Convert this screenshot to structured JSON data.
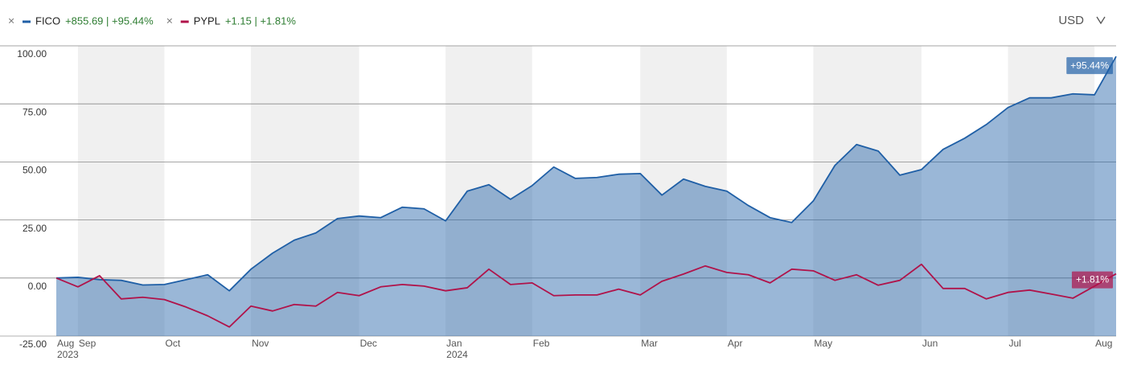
{
  "chart_data": {
    "type": "line",
    "currency": "USD",
    "categories": [
      "Aug 2023",
      "Sep",
      null,
      null,
      null,
      "Oct",
      null,
      null,
      null,
      "Nov",
      null,
      null,
      null,
      null,
      "Dec",
      null,
      null,
      null,
      "Jan 2024",
      null,
      null,
      null,
      "Feb",
      null,
      null,
      null,
      null,
      "Mar",
      null,
      null,
      null,
      "Apr",
      null,
      null,
      null,
      "May",
      null,
      null,
      null,
      null,
      "Jun",
      null,
      null,
      null,
      "Jul",
      null,
      null,
      null,
      "Aug",
      null
    ],
    "series": [
      {
        "name": "FICO",
        "summary": "+855.69 | +95.44%",
        "end_label": "+95.44%",
        "color": "#1f5fa6",
        "area": true,
        "values": [
          0,
          0.3,
          -0.7,
          -1,
          -3,
          -2.8,
          -0.7,
          1.4,
          -5.5,
          3.8,
          10.7,
          16.3,
          19.4,
          25.6,
          26.7,
          26,
          30.5,
          29.8,
          24.6,
          37.4,
          40.2,
          33.9,
          39.8,
          47.8,
          42.9,
          43.3,
          44.7,
          45,
          35.7,
          42.6,
          39.5,
          37.4,
          31.2,
          26,
          23.9,
          33.2,
          48.5,
          57.5,
          54.7,
          44.3,
          46.7,
          55.4,
          60.2,
          66.1,
          73.4,
          77.6,
          77.6,
          79.3,
          78.9,
          95.44
        ]
      },
      {
        "name": "PYPL",
        "summary": "+1.15 | +1.81%",
        "end_label": "+1.81%",
        "color": "#b0134a",
        "area": false,
        "values": [
          0,
          -3.8,
          1,
          -9,
          -8.3,
          -9.3,
          -12.5,
          -16.3,
          -21.1,
          -12.1,
          -14.2,
          -11.4,
          -12.1,
          -6.2,
          -7.6,
          -3.8,
          -2.8,
          -3.5,
          -5.5,
          -4.2,
          3.8,
          -2.8,
          -2.1,
          -7.6,
          -7.3,
          -7.3,
          -4.8,
          -7.3,
          -1.4,
          1.7,
          5.2,
          2.4,
          1.4,
          -2.1,
          3.8,
          3.1,
          -1,
          1.4,
          -3.1,
          -1,
          5.9,
          -4.5,
          -4.5,
          -9,
          -6.2,
          -5.2,
          -6.9,
          -8.7,
          -3.5,
          1.81
        ]
      }
    ],
    "ylim": [
      -25,
      100
    ],
    "yticks": [
      {
        "value": -25,
        "label": "-25.00"
      },
      {
        "value": 0,
        "label": "0.00"
      },
      {
        "value": 25,
        "label": "25.00"
      },
      {
        "value": 50,
        "label": "50.00"
      },
      {
        "value": 75,
        "label": "75.00"
      },
      {
        "value": 100,
        "label": "100.00"
      }
    ],
    "grid": true
  }
}
